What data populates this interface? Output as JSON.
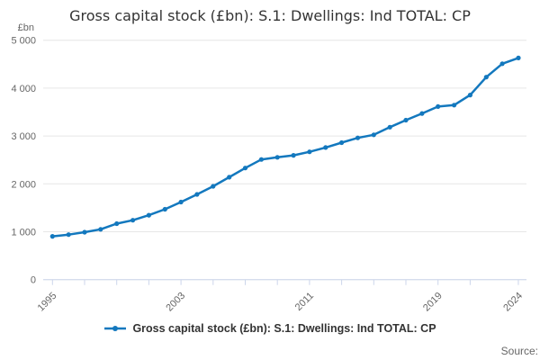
{
  "title": {
    "text": "Gross capital stock (£bn): S.1: Dwellings: Ind TOTAL: CP"
  },
  "y_axis": {
    "unit_label": "£bn",
    "tick_values": [
      0,
      1000,
      2000,
      3000,
      4000,
      5000
    ],
    "tick_labels": [
      "0",
      "1 000",
      "2 000",
      "3 000",
      "4 000",
      "5 000"
    ]
  },
  "x_axis": {
    "tick_years": [
      1995,
      1997,
      1999,
      2001,
      2003,
      2005,
      2007,
      2009,
      2011,
      2013,
      2015,
      2017,
      2019,
      2021,
      2024
    ],
    "labeled_years": [
      "1995",
      "2003",
      "2011",
      "2019",
      "2024"
    ]
  },
  "legend": {
    "label": "Gross capital stock (£bn): S.1: Dwellings: Ind TOTAL: CP"
  },
  "source_label": "Source:",
  "colors": {
    "line": "#1378be",
    "grid": "#e6e6e6",
    "axis": "#ccd6eb",
    "tick_label": "#666666",
    "title": "#333333"
  },
  "chart_data": {
    "type": "line",
    "title": "Gross capital stock (£bn): S.1: Dwellings: Ind TOTAL: CP",
    "xlabel": "",
    "ylabel": "£bn",
    "ylim": [
      0,
      5000
    ],
    "grid": true,
    "legend_position": "bottom",
    "x": [
      1995,
      1996,
      1997,
      1998,
      1999,
      2000,
      2001,
      2002,
      2003,
      2004,
      2005,
      2006,
      2007,
      2008,
      2009,
      2010,
      2011,
      2012,
      2013,
      2014,
      2015,
      2016,
      2017,
      2018,
      2019,
      2020,
      2021,
      2022,
      2023,
      2024
    ],
    "series": [
      {
        "name": "Gross capital stock (£bn): S.1: Dwellings: Ind TOTAL: CP",
        "values": [
          905,
          940,
          990,
          1050,
          1170,
          1240,
          1345,
          1470,
          1620,
          1780,
          1950,
          2140,
          2330,
          2510,
          2555,
          2595,
          2670,
          2760,
          2860,
          2960,
          3025,
          3185,
          3330,
          3470,
          3615,
          3645,
          3855,
          4230,
          4510,
          4630
        ]
      }
    ]
  }
}
